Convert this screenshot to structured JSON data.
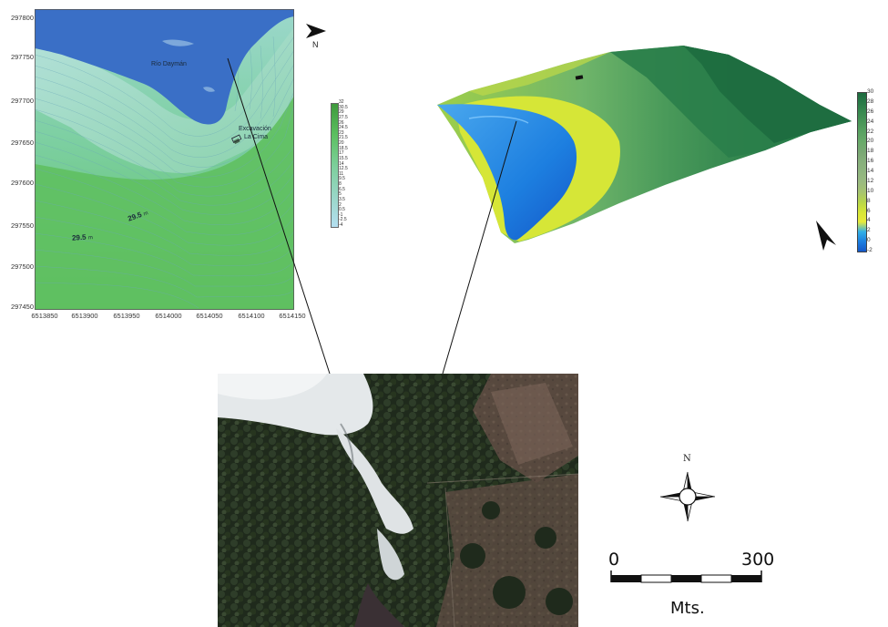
{
  "contour_map": {
    "y_ticks": [
      "297800",
      "297750",
      "297700",
      "297650",
      "297600",
      "297550",
      "297500",
      "297450"
    ],
    "x_ticks": [
      "6513850",
      "6513900",
      "6513950",
      "6514000",
      "6514050",
      "6514100",
      "6514150"
    ],
    "river_label": "Río Daymán",
    "site_label_line1": "Excavación",
    "site_label_line2": "La Cima",
    "elev_label_1": "29.5",
    "elev_label_1_unit": "m",
    "elev_label_2": "29.5",
    "elev_label_2_unit": "m",
    "legend_values": [
      "32",
      "30.5",
      "29",
      "27.5",
      "26",
      "24.5",
      "23",
      "21.5",
      "20",
      "18.5",
      "17",
      "15.5",
      "14",
      "12.5",
      "11",
      "9.5",
      "8",
      "6.5",
      "5",
      "3.5",
      "2",
      "0.5",
      "-1",
      "-2.5",
      "-4"
    ],
    "north_label": "N"
  },
  "surface_3d": {
    "legend_values": [
      "30",
      "28",
      "26",
      "24",
      "22",
      "20",
      "18",
      "16",
      "14",
      "12",
      "10",
      "8",
      "6",
      "4",
      "2",
      "0",
      "-2"
    ],
    "legend_colors": [
      "#1d6b3f",
      "#2a7a48",
      "#3a8a50",
      "#4a9658",
      "#5aa262",
      "#6aaa6a",
      "#7aa874",
      "#88b07c",
      "#8fb57f",
      "#9aba80",
      "#a6c470",
      "#b8d64a",
      "#d6e637",
      "#e8ea3a",
      "#33b0e6",
      "#1d7fe0",
      "#1457c8"
    ]
  },
  "compass": {
    "north_label": "N"
  },
  "scale_bar": {
    "start_label": "0",
    "end_label": "300",
    "unit_label": "Mts."
  }
}
